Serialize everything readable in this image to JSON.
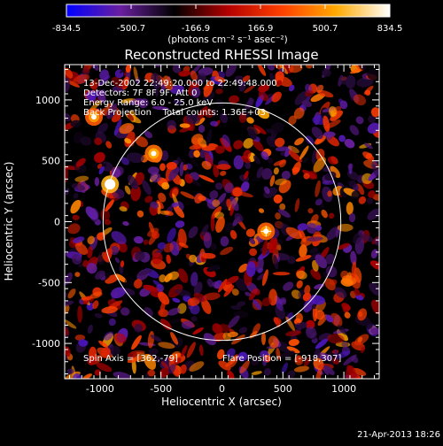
{
  "colorbar": {
    "tick_labels": [
      "-834.5",
      "-500.7",
      "-166.9",
      "166.9",
      "500.7",
      "834.5"
    ],
    "unit_label": "(photons cm⁻² s⁻¹ asec⁻²)",
    "range": [
      -834.5,
      834.5
    ],
    "colors": [
      "#0000ff",
      "#6a1fa0",
      "#000000",
      "#b40000",
      "#ff4000",
      "#ffaa00",
      "#ffffff"
    ]
  },
  "chart_data": {
    "type": "heatmap",
    "title": "Reconstructed RHESSI Image",
    "xlabel": "Heliocentric X (arcsec)",
    "ylabel": "Heliocentric Y (arcsec)",
    "xlim": [
      -1290,
      1290
    ],
    "ylim": [
      -1290,
      1290
    ],
    "xticks": [
      -1000,
      -500,
      0,
      500,
      1000
    ],
    "yticks": [
      -1000,
      -500,
      0,
      500,
      1000
    ],
    "x_tick_labels": [
      "-1000",
      "-500",
      "0",
      "500",
      "1000"
    ],
    "y_tick_labels": [
      "-1000",
      "-500",
      "0",
      "500",
      "1000"
    ],
    "value_range": [
      -834.5,
      834.5
    ],
    "solar_limb_radius_arcsec": 975,
    "map_center": [
      362,
      -79
    ],
    "info_lines": [
      "13-Dec-2002 22:49:20.000 to 22:49:48.000",
      "Detectors: 7F 8F 9F, Att 0",
      "Energy Range: 6.0 - 25.0 keV",
      "Back Projection    Total counts: 1.36E+03"
    ],
    "footer_left": "Spin Axis = [362,-79]",
    "footer_right": "Flare Position = [-918,307]",
    "bright_sources": [
      {
        "x": -918,
        "y": 307,
        "value": 834.5
      },
      {
        "x": -560,
        "y": 560,
        "value": 560
      },
      {
        "x": -1050,
        "y": 860,
        "value": 500
      },
      {
        "x": 362,
        "y": -79,
        "value": 520
      }
    ]
  },
  "timestamp": "21-Apr-2013 18:26"
}
